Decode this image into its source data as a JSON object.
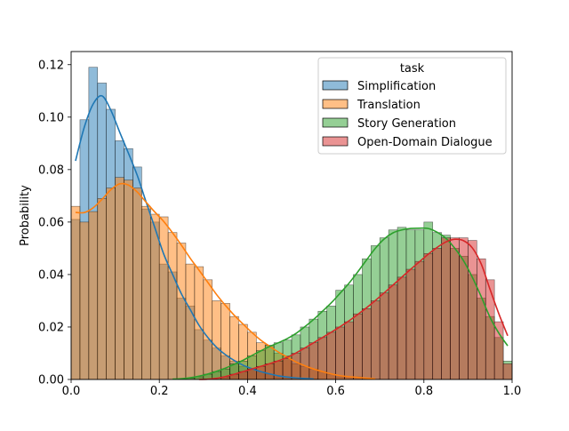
{
  "chart_data": {
    "type": "bar",
    "title": "",
    "xlabel": "",
    "ylabel": "Probability",
    "xlim": [
      0,
      1
    ],
    "ylim": [
      0,
      0.125
    ],
    "xticks": [
      "0.0",
      "0.2",
      "0.4",
      "0.6",
      "0.8",
      "1.0"
    ],
    "yticks": [
      "0.00",
      "0.02",
      "0.04",
      "0.06",
      "0.08",
      "0.10",
      "0.12"
    ],
    "grid": false,
    "legend": {
      "title": "task",
      "placement": "top-right"
    },
    "bin_width": 0.02,
    "x": [
      0.01,
      0.03,
      0.05,
      0.07,
      0.09,
      0.11,
      0.13,
      0.15,
      0.17,
      0.19,
      0.21,
      0.23,
      0.25,
      0.27,
      0.29,
      0.31,
      0.33,
      0.35,
      0.37,
      0.39,
      0.41,
      0.43,
      0.45,
      0.47,
      0.49,
      0.51,
      0.53,
      0.55,
      0.57,
      0.59,
      0.61,
      0.63,
      0.65,
      0.67,
      0.69,
      0.71,
      0.73,
      0.75,
      0.77,
      0.79,
      0.81,
      0.83,
      0.85,
      0.87,
      0.89,
      0.91,
      0.93,
      0.95,
      0.97,
      0.99
    ],
    "series": [
      {
        "name": "Simplification",
        "color": "#1f77b4",
        "values": [
          0.061,
          0.099,
          0.119,
          0.113,
          0.103,
          0.091,
          0.088,
          0.081,
          0.065,
          0.06,
          0.044,
          0.041,
          0.031,
          0.028,
          0.019,
          0.015,
          0.012,
          0.009,
          0.007,
          0.005,
          0.004,
          0.003,
          0.002,
          0.001,
          0.001,
          0.0005,
          0.0003,
          0.0002,
          0.0001,
          0,
          0,
          0,
          0,
          0,
          0,
          0,
          0,
          0,
          0,
          0,
          0,
          0,
          0,
          0,
          0,
          0,
          0,
          0,
          0,
          0
        ]
      },
      {
        "name": "Translation",
        "color": "#ff7f0e",
        "values": [
          0.066,
          0.06,
          0.064,
          0.069,
          0.073,
          0.077,
          0.076,
          0.073,
          0.066,
          0.063,
          0.062,
          0.056,
          0.052,
          0.044,
          0.043,
          0.038,
          0.03,
          0.029,
          0.024,
          0.021,
          0.018,
          0.014,
          0.013,
          0.01,
          0.009,
          0.006,
          0.005,
          0.004,
          0.003,
          0.002,
          0.001,
          0.001,
          0.001,
          0.0005,
          0,
          0,
          0,
          0,
          0,
          0,
          0,
          0,
          0,
          0,
          0,
          0,
          0,
          0,
          0,
          0
        ]
      },
      {
        "name": "Story Generation",
        "color": "#2ca02c",
        "values": [
          0,
          0,
          0,
          0,
          0,
          0,
          0,
          0,
          0,
          0,
          0,
          0,
          0.0002,
          0.0005,
          0.001,
          0.002,
          0.003,
          0.004,
          0.006,
          0.007,
          0.009,
          0.011,
          0.013,
          0.014,
          0.015,
          0.017,
          0.02,
          0.023,
          0.026,
          0.028,
          0.034,
          0.036,
          0.04,
          0.046,
          0.051,
          0.054,
          0.057,
          0.058,
          0.057,
          0.057,
          0.06,
          0.056,
          0.055,
          0.05,
          0.047,
          0.04,
          0.031,
          0.024,
          0.016,
          0.007
        ]
      },
      {
        "name": "Open-Domain Dialogue",
        "color": "#d62728",
        "values": [
          0,
          0,
          0,
          0,
          0,
          0,
          0,
          0,
          0,
          0,
          0,
          0,
          0,
          0,
          0,
          0,
          0,
          0.001,
          0.002,
          0.003,
          0.004,
          0.005,
          0.006,
          0.007,
          0.008,
          0.01,
          0.012,
          0.014,
          0.016,
          0.018,
          0.02,
          0.022,
          0.025,
          0.027,
          0.03,
          0.033,
          0.036,
          0.039,
          0.042,
          0.045,
          0.048,
          0.05,
          0.054,
          0.054,
          0.054,
          0.053,
          0.046,
          0.038,
          0.022,
          0.006
        ]
      }
    ]
  }
}
